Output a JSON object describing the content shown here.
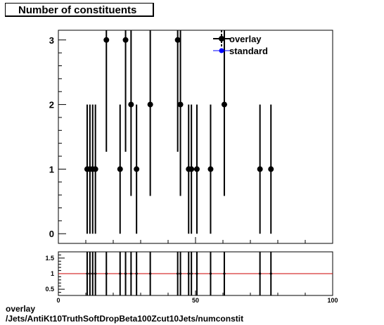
{
  "title": "Number of constituents",
  "footer": {
    "line1": "overlay",
    "line2": "/Jets/AntiKt10TruthSoftDropBeta100Zcut10Jets/numconstit"
  },
  "colors": {
    "overlay": "#000000",
    "standard": "#0000ff",
    "ratio_line": "#cc0000"
  },
  "chart_data": [
    {
      "type": "scatter",
      "title": "Number of constituents",
      "xlim": [
        0,
        100
      ],
      "ylim": [
        -0.15,
        3.15
      ],
      "x_ticks": [
        "0",
        "50",
        "100"
      ],
      "y_ticks": [
        "0",
        "1",
        "2",
        "3"
      ],
      "legend": {
        "position": "top-right",
        "entries": [
          "overlay",
          "standard"
        ]
      },
      "series": [
        {
          "name": "overlay",
          "points": [
            {
              "x": 10.5,
              "y": 1
            },
            {
              "x": 11.5,
              "y": 1
            },
            {
              "x": 12.5,
              "y": 1
            },
            {
              "x": 13.5,
              "y": 1
            },
            {
              "x": 17.5,
              "y": 3
            },
            {
              "x": 22.5,
              "y": 1
            },
            {
              "x": 24.5,
              "y": 3
            },
            {
              "x": 26.5,
              "y": 2
            },
            {
              "x": 28.5,
              "y": 1
            },
            {
              "x": 33.5,
              "y": 2
            },
            {
              "x": 43.5,
              "y": 3
            },
            {
              "x": 44.5,
              "y": 2
            },
            {
              "x": 47.5,
              "y": 1
            },
            {
              "x": 48.5,
              "y": 1
            },
            {
              "x": 50.5,
              "y": 1
            },
            {
              "x": 55.5,
              "y": 1
            },
            {
              "x": 60.5,
              "y": 2
            },
            {
              "x": 73.5,
              "y": 1
            },
            {
              "x": 77.5,
              "y": 1
            }
          ]
        },
        {
          "name": "standard",
          "points": []
        }
      ]
    },
    {
      "type": "scatter",
      "xlim": [
        0,
        100
      ],
      "ylim": [
        0.3,
        1.7
      ],
      "x_ticks": [
        "0",
        "50",
        "100"
      ],
      "y_ticks": [
        "0.5",
        "1",
        "1.5"
      ],
      "reference_line": 1,
      "series": [
        {
          "name": "ratio",
          "points": [
            {
              "x": 10.5,
              "y": 1
            },
            {
              "x": 11.5,
              "y": 1
            },
            {
              "x": 12.5,
              "y": 1
            },
            {
              "x": 13.5,
              "y": 1
            },
            {
              "x": 17.5,
              "y": 1
            },
            {
              "x": 22.5,
              "y": 1
            },
            {
              "x": 24.5,
              "y": 1
            },
            {
              "x": 26.5,
              "y": 1
            },
            {
              "x": 28.5,
              "y": 1
            },
            {
              "x": 33.5,
              "y": 1
            },
            {
              "x": 43.5,
              "y": 1
            },
            {
              "x": 44.5,
              "y": 1
            },
            {
              "x": 47.5,
              "y": 1
            },
            {
              "x": 48.5,
              "y": 1
            },
            {
              "x": 50.5,
              "y": 1
            },
            {
              "x": 55.5,
              "y": 1
            },
            {
              "x": 60.5,
              "y": 1
            },
            {
              "x": 73.5,
              "y": 1
            },
            {
              "x": 77.5,
              "y": 1
            }
          ]
        }
      ]
    }
  ]
}
